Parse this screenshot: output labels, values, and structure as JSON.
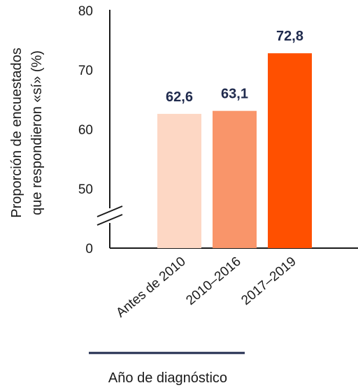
{
  "chart_data": {
    "type": "bar",
    "categories": [
      "Antes de 2010",
      "2010–2016",
      "2017–2019"
    ],
    "values": [
      62.6,
      63.1,
      72.8
    ],
    "value_labels": [
      "62,6",
      "63,1",
      "72,8"
    ],
    "colors": [
      "#fdd7c4",
      "#f9956a",
      "#ff5000"
    ],
    "ylabel": [
      "Proporción de encuestados",
      "que respondieron «sí» (%)"
    ],
    "xlabel": "Año de diagnóstico",
    "yticks": [
      {
        "label": "0",
        "value": 0
      },
      {
        "label": "50",
        "value": 50
      },
      {
        "label": "60",
        "value": 60
      },
      {
        "label": "70",
        "value": 70
      },
      {
        "label": "80",
        "value": 80
      }
    ],
    "ylim": [
      45,
      80
    ],
    "axis_break": true,
    "grid": false
  }
}
